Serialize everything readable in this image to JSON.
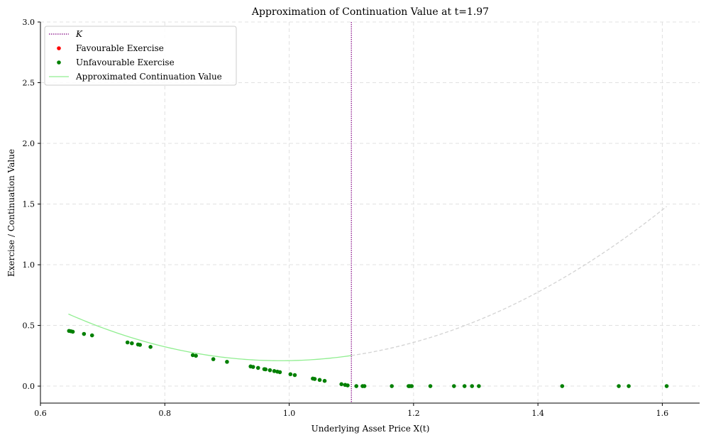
{
  "chart_data": {
    "type": "scatter",
    "title": "Approximation of Continuation Value at t=1.97",
    "xlabel": "Underlying Asset Price X(t)",
    "ylabel": "Exercise / Continuation Value",
    "xlim": [
      0.6,
      1.66
    ],
    "ylim": [
      -0.14,
      3.0
    ],
    "grid": true,
    "legend_position": "top-left",
    "x_ticks": [
      {
        "value": 0.6,
        "label": "0.6"
      },
      {
        "value": 0.8,
        "label": "0.8"
      },
      {
        "value": 1.0,
        "label": "1.0"
      },
      {
        "value": 1.2,
        "label": "1.2"
      },
      {
        "value": 1.4,
        "label": "1.4"
      },
      {
        "value": 1.6,
        "label": "1.6"
      }
    ],
    "y_ticks": [
      {
        "value": 0.0,
        "label": "0.0"
      },
      {
        "value": 0.5,
        "label": "0.5"
      },
      {
        "value": 1.0,
        "label": "1.0"
      },
      {
        "value": 1.5,
        "label": "1.5"
      },
      {
        "value": 2.0,
        "label": "2.0"
      },
      {
        "value": 2.5,
        "label": "2.5"
      },
      {
        "value": 3.0,
        "label": "3.0"
      }
    ],
    "strike": {
      "name": "K",
      "value": 1.1,
      "color": "#800080"
    },
    "legend": [
      {
        "label": "K",
        "kind": "dotted-line",
        "color": "#800080"
      },
      {
        "label": "Favourable Exercise",
        "kind": "dot",
        "color": "#ff0000"
      },
      {
        "label": "Unfavourable Exercise",
        "kind": "dot",
        "color": "#008000"
      },
      {
        "label": "Approximated Continuation Value",
        "kind": "line",
        "color": "#90ee90"
      }
    ],
    "series": [
      {
        "name": "Favourable Exercise",
        "color": "#ff0000",
        "points": []
      },
      {
        "name": "Unfavourable Exercise",
        "color": "#008000",
        "points": [
          [
            0.646,
            0.455
          ],
          [
            0.649,
            0.452
          ],
          [
            0.652,
            0.448
          ],
          [
            0.67,
            0.43
          ],
          [
            0.683,
            0.418
          ],
          [
            0.74,
            0.36
          ],
          [
            0.747,
            0.353
          ],
          [
            0.757,
            0.343
          ],
          [
            0.76,
            0.34
          ],
          [
            0.777,
            0.323
          ],
          [
            0.845,
            0.255
          ],
          [
            0.85,
            0.25
          ],
          [
            0.878,
            0.222
          ],
          [
            0.9,
            0.2
          ],
          [
            0.938,
            0.162
          ],
          [
            0.942,
            0.158
          ],
          [
            0.95,
            0.15
          ],
          [
            0.96,
            0.14
          ],
          [
            0.962,
            0.138
          ],
          [
            0.969,
            0.131
          ],
          [
            0.976,
            0.124
          ],
          [
            0.981,
            0.119
          ],
          [
            0.985,
            0.115
          ],
          [
            1.002,
            0.098
          ],
          [
            1.009,
            0.091
          ],
          [
            1.038,
            0.062
          ],
          [
            1.041,
            0.059
          ],
          [
            1.049,
            0.051
          ],
          [
            1.057,
            0.043
          ],
          [
            1.084,
            0.016
          ],
          [
            1.09,
            0.01
          ],
          [
            1.094,
            0.006
          ],
          [
            1.108,
            0.0
          ],
          [
            1.118,
            0.0
          ],
          [
            1.121,
            0.0
          ],
          [
            1.165,
            0.0
          ],
          [
            1.192,
            0.0
          ],
          [
            1.194,
            0.0
          ],
          [
            1.197,
            0.0
          ],
          [
            1.227,
            0.0
          ],
          [
            1.265,
            0.0
          ],
          [
            1.282,
            0.0
          ],
          [
            1.294,
            0.0
          ],
          [
            1.305,
            0.0
          ],
          [
            1.439,
            0.0
          ],
          [
            1.53,
            0.0
          ],
          [
            1.546,
            0.0
          ],
          [
            1.607,
            0.0
          ]
        ]
      },
      {
        "name": "Approximated Continuation Value",
        "color": "#90ee90",
        "kind": "line",
        "x_range": [
          0.645,
          1.1
        ],
        "quadratic": {
          "a": 3.3,
          "b": -6.51,
          "c": 3.42
        }
      },
      {
        "name": "",
        "color": "#d3d3d3",
        "kind": "dashed-line",
        "x_range": [
          1.1,
          1.607
        ],
        "quadratic": {
          "a": 3.3,
          "b": -6.51,
          "c": 3.42
        }
      }
    ]
  }
}
